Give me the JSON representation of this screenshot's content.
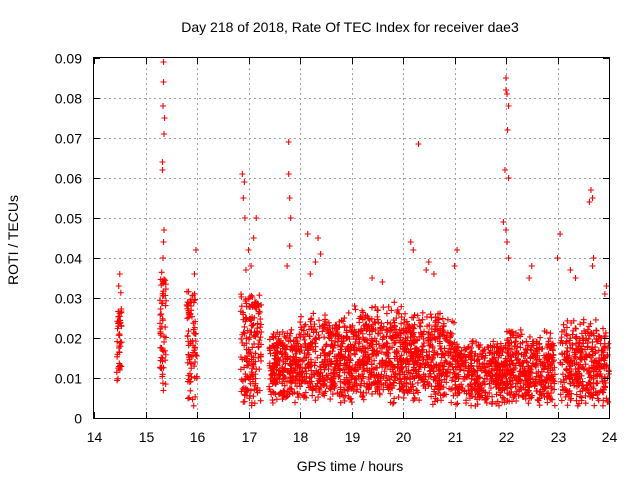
{
  "chart_data": {
    "type": "scatter",
    "title": "Day 218 of 2018, Rate Of TEC Index for receiver dae3",
    "xlabel": "GPS time / hours",
    "ylabel": "ROTI / TECUs",
    "xlim": [
      14,
      24
    ],
    "ylim": [
      0,
      0.09
    ],
    "x_ticks": [
      "14",
      "15",
      "16",
      "17",
      "18",
      "19",
      "20",
      "21",
      "22",
      "23",
      "24"
    ],
    "y_ticks": [
      "0",
      "0.01",
      "0.02",
      "0.03",
      "0.04",
      "0.05",
      "0.06",
      "0.07",
      "0.08",
      "0.09"
    ],
    "grid": true,
    "marker": "+",
    "series_color": "#ff0000",
    "point_clusters": [
      {
        "x_range": [
          14.44,
          14.54
        ],
        "y_base": [
          0.01,
          0.03
        ],
        "y_spread": 0.004,
        "count": 45
      },
      {
        "x_range": [
          15.28,
          15.4
        ],
        "y_base": [
          0.008,
          0.036
        ],
        "y_spread": 0.006,
        "count": 55
      },
      {
        "x_range": [
          15.8,
          16.0
        ],
        "y_base": [
          0.005,
          0.032
        ],
        "y_spread": 0.005,
        "count": 80
      },
      {
        "x_range": [
          16.85,
          17.25
        ],
        "y_base": [
          0.003,
          0.03
        ],
        "y_spread": 0.006,
        "count": 170
      },
      {
        "x_range": [
          17.4,
          18.0
        ],
        "y_base": [
          0.006,
          0.02
        ],
        "y_spread": 0.005,
        "count": 260
      },
      {
        "x_range": [
          18.0,
          19.0
        ],
        "y_base": [
          0.006,
          0.024
        ],
        "y_spread": 0.006,
        "count": 400
      },
      {
        "x_range": [
          19.0,
          20.0
        ],
        "y_base": [
          0.006,
          0.026
        ],
        "y_spread": 0.006,
        "count": 420
      },
      {
        "x_range": [
          20.0,
          21.0
        ],
        "y_base": [
          0.006,
          0.024
        ],
        "y_spread": 0.006,
        "count": 420
      },
      {
        "x_range": [
          21.0,
          22.0
        ],
        "y_base": [
          0.005,
          0.018
        ],
        "y_spread": 0.005,
        "count": 380
      },
      {
        "x_range": [
          22.0,
          22.95
        ],
        "y_base": [
          0.005,
          0.02
        ],
        "y_spread": 0.006,
        "count": 380
      },
      {
        "x_range": [
          23.05,
          24.0
        ],
        "y_base": [
          0.005,
          0.022
        ],
        "y_spread": 0.006,
        "count": 360
      }
    ],
    "outliers": [
      {
        "x": 14.5,
        "y": 0.036
      },
      {
        "x": 14.48,
        "y": 0.033
      },
      {
        "x": 15.35,
        "y": 0.089
      },
      {
        "x": 15.35,
        "y": 0.084
      },
      {
        "x": 15.34,
        "y": 0.078
      },
      {
        "x": 15.37,
        "y": 0.075
      },
      {
        "x": 15.36,
        "y": 0.071
      },
      {
        "x": 15.33,
        "y": 0.064
      },
      {
        "x": 15.33,
        "y": 0.062
      },
      {
        "x": 15.36,
        "y": 0.047
      },
      {
        "x": 15.35,
        "y": 0.044
      },
      {
        "x": 15.34,
        "y": 0.04
      },
      {
        "x": 15.36,
        "y": 0.034
      },
      {
        "x": 15.98,
        "y": 0.042
      },
      {
        "x": 15.95,
        "y": 0.036
      },
      {
        "x": 16.88,
        "y": 0.061
      },
      {
        "x": 16.92,
        "y": 0.059
      },
      {
        "x": 16.9,
        "y": 0.055
      },
      {
        "x": 16.93,
        "y": 0.05
      },
      {
        "x": 17.15,
        "y": 0.05
      },
      {
        "x": 17.1,
        "y": 0.045
      },
      {
        "x": 17.0,
        "y": 0.042
      },
      {
        "x": 17.05,
        "y": 0.038
      },
      {
        "x": 16.95,
        "y": 0.037
      },
      {
        "x": 17.78,
        "y": 0.069
      },
      {
        "x": 17.78,
        "y": 0.061
      },
      {
        "x": 17.8,
        "y": 0.055
      },
      {
        "x": 17.82,
        "y": 0.05
      },
      {
        "x": 17.8,
        "y": 0.043
      },
      {
        "x": 17.75,
        "y": 0.038
      },
      {
        "x": 18.15,
        "y": 0.046
      },
      {
        "x": 18.35,
        "y": 0.045
      },
      {
        "x": 18.4,
        "y": 0.041
      },
      {
        "x": 18.3,
        "y": 0.039
      },
      {
        "x": 18.2,
        "y": 0.036
      },
      {
        "x": 19.4,
        "y": 0.035
      },
      {
        "x": 19.6,
        "y": 0.034
      },
      {
        "x": 20.3,
        "y": 0.0685
      },
      {
        "x": 20.15,
        "y": 0.044
      },
      {
        "x": 20.2,
        "y": 0.042
      },
      {
        "x": 20.5,
        "y": 0.039
      },
      {
        "x": 20.45,
        "y": 0.037
      },
      {
        "x": 20.6,
        "y": 0.036
      },
      {
        "x": 21.05,
        "y": 0.042
      },
      {
        "x": 21.0,
        "y": 0.038
      },
      {
        "x": 22.0,
        "y": 0.085
      },
      {
        "x": 22.0,
        "y": 0.082
      },
      {
        "x": 22.02,
        "y": 0.081
      },
      {
        "x": 22.05,
        "y": 0.078
      },
      {
        "x": 22.03,
        "y": 0.072
      },
      {
        "x": 21.98,
        "y": 0.062
      },
      {
        "x": 22.05,
        "y": 0.06
      },
      {
        "x": 21.95,
        "y": 0.049
      },
      {
        "x": 22.0,
        "y": 0.047
      },
      {
        "x": 22.02,
        "y": 0.044
      },
      {
        "x": 22.05,
        "y": 0.04
      },
      {
        "x": 22.5,
        "y": 0.038
      },
      {
        "x": 22.45,
        "y": 0.035
      },
      {
        "x": 23.05,
        "y": 0.046
      },
      {
        "x": 23.0,
        "y": 0.04
      },
      {
        "x": 23.25,
        "y": 0.037
      },
      {
        "x": 23.35,
        "y": 0.035
      },
      {
        "x": 23.65,
        "y": 0.057
      },
      {
        "x": 23.68,
        "y": 0.055
      },
      {
        "x": 23.62,
        "y": 0.054
      },
      {
        "x": 23.7,
        "y": 0.04
      },
      {
        "x": 23.68,
        "y": 0.038
      },
      {
        "x": 23.95,
        "y": 0.033
      },
      {
        "x": 23.92,
        "y": 0.031
      }
    ]
  }
}
